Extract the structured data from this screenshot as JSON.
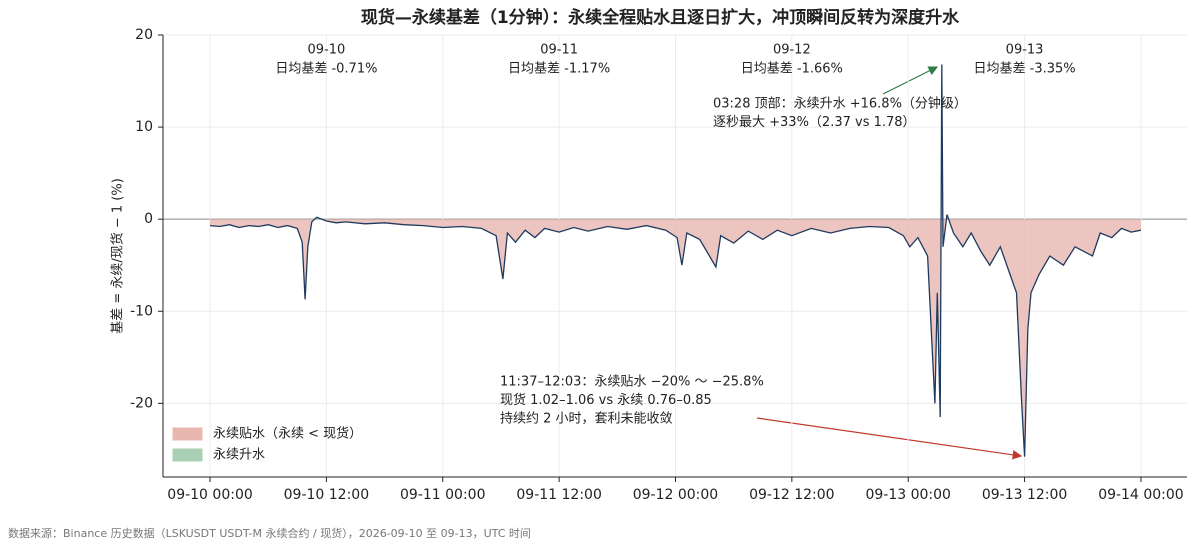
{
  "chart_data": {
    "type": "line",
    "title": "现货—永续基差（1分钟）：永续全程贴水且逐日扩大，冲顶瞬间反转为深度升水",
    "y_label": "基差 = 永续/现货 − 1 (%)",
    "xlim": [
      "09-09 19:09",
      "09-14 04:45"
    ],
    "xticks": [
      "09-10 00:00",
      "09-10 12:00",
      "09-11 00:00",
      "09-11 12:00",
      "09-12 00:00",
      "09-12 12:00",
      "09-13 00:00",
      "09-13 12:00",
      "09-14 00:00"
    ],
    "ylim": [
      -28,
      20
    ],
    "yticks": [
      -20,
      -10,
      0,
      10,
      20
    ],
    "grid": true,
    "series": [
      {
        "color": "#1f3a5f",
        "x": [
          "09-10 00:00",
          "09-10 01:00",
          "09-10 02:00",
          "09-10 03:00",
          "09-10 04:00",
          "09-10 05:00",
          "09-10 06:00",
          "09-10 07:00",
          "09-10 08:00",
          "09-10 09:00",
          "09-10 09:30",
          "09-10 09:48",
          "09-10 10:05",
          "09-10 10:30",
          "09-10 11:00",
          "09-10 12:00",
          "09-10 13:00",
          "09-10 14:00",
          "09-10 16:00",
          "09-10 18:00",
          "09-10 20:00",
          "09-10 22:00",
          "09-11 00:00",
          "09-11 02:00",
          "09-11 04:00",
          "09-11 05:30",
          "09-11 06:12",
          "09-11 06:40",
          "09-11 07:30",
          "09-11 08:30",
          "09-11 09:30",
          "09-11 10:30",
          "09-11 12:00",
          "09-11 13:30",
          "09-11 15:00",
          "09-11 17:00",
          "09-11 19:00",
          "09-11 21:00",
          "09-11 23:00",
          "09-12 00:10",
          "09-12 00:40",
          "09-12 01:10",
          "09-12 02:30",
          "09-12 04:10",
          "09-12 04:40",
          "09-12 06:00",
          "09-12 07:30",
          "09-12 09:00",
          "09-12 10:30",
          "09-12 12:00",
          "09-12 14:00",
          "09-12 16:00",
          "09-12 18:00",
          "09-12 20:00",
          "09-12 22:00",
          "09-12 23:30",
          "09-13 00:10",
          "09-13 01:00",
          "09-13 02:00",
          "09-13 02:45",
          "09-13 03:00",
          "09-13 03:18",
          "09-13 03:28",
          "09-13 03:35",
          "09-13 04:00",
          "09-13 04:40",
          "09-13 05:38",
          "09-13 06:30",
          "09-13 07:30",
          "09-13 08:25",
          "09-13 09:30",
          "09-13 10:30",
          "09-13 11:10",
          "09-13 11:42",
          "09-13 12:00",
          "09-13 12:20",
          "09-13 12:40",
          "09-13 13:30",
          "09-13 14:36",
          "09-13 16:00",
          "09-13 17:12",
          "09-13 19:00",
          "09-13 19:48",
          "09-13 21:00",
          "09-13 22:00",
          "09-13 23:00",
          "09-14 00:00"
        ],
        "values": [
          -0.7,
          -0.8,
          -0.6,
          -0.9,
          -0.7,
          -0.8,
          -0.6,
          -0.9,
          -0.7,
          -1.0,
          -2.5,
          -8.7,
          -3.0,
          -0.3,
          0.2,
          -0.2,
          -0.4,
          -0.3,
          -0.5,
          -0.4,
          -0.6,
          -0.7,
          -0.9,
          -0.8,
          -1.0,
          -1.8,
          -6.5,
          -1.5,
          -2.5,
          -1.2,
          -2.0,
          -1.0,
          -1.4,
          -0.9,
          -1.3,
          -0.8,
          -1.1,
          -0.7,
          -1.2,
          -2.0,
          -5.0,
          -1.5,
          -2.2,
          -5.2,
          -1.8,
          -2.6,
          -1.3,
          -2.2,
          -1.2,
          -1.8,
          -1.0,
          -1.5,
          -1.0,
          -0.8,
          -0.9,
          -1.8,
          -3.0,
          -2.0,
          -4.0,
          -20.0,
          -8.0,
          -21.5,
          16.8,
          -3.0,
          0.5,
          -1.5,
          -3.0,
          -1.5,
          -3.5,
          -5.0,
          -3.0,
          -6.0,
          -8.0,
          -20.0,
          -25.8,
          -12.0,
          -8.0,
          -6.0,
          -4.0,
          -5.0,
          -3.0,
          -4.0,
          -1.5,
          -2.0,
          -1.0,
          -1.4,
          -1.2
        ]
      }
    ],
    "fills": [
      {
        "name": "永续贴水（永续 < 现货）",
        "color": "#e8b7b0",
        "side": "below"
      },
      {
        "name": "永续升水",
        "color": "#a9cfb5",
        "side": "above"
      }
    ],
    "day_labels": [
      {
        "date": "09-10",
        "text": "日均基差 -0.71%"
      },
      {
        "date": "09-11",
        "text": "日均基差 -1.17%"
      },
      {
        "date": "09-12",
        "text": "日均基差 -1.66%"
      },
      {
        "date": "09-13",
        "text": "日均基差 -3.35%"
      }
    ],
    "annotations": [
      {
        "color": "#2e7d46",
        "lines": [
          "03:28 顶部：永续升水 +16.8%（分钟级）",
          "逐秒最大 +33%（2.37 vs 1.78）"
        ]
      },
      {
        "color": "#c0392b",
        "lines": [
          "11:37–12:03：永续贴水 −20% ～ −25.8%",
          "现货 1.02–1.06 vs 永续 0.76–0.85",
          "持续约 2 小时，套利未能收敛"
        ]
      }
    ],
    "source": "数据来源：Binance 历史数据（LSKUSDT USDT-M 永续合约 / 现货），2026-09-10 至 09-13，UTC 时间"
  }
}
